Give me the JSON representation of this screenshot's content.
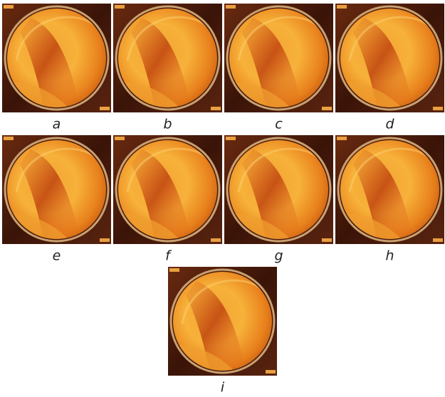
{
  "panels": [
    {
      "label": "a"
    },
    {
      "label": "b"
    },
    {
      "label": "c"
    },
    {
      "label": "d"
    },
    {
      "label": "e"
    },
    {
      "label": "f"
    },
    {
      "label": "g"
    },
    {
      "label": "h"
    },
    {
      "label": "i"
    }
  ]
}
